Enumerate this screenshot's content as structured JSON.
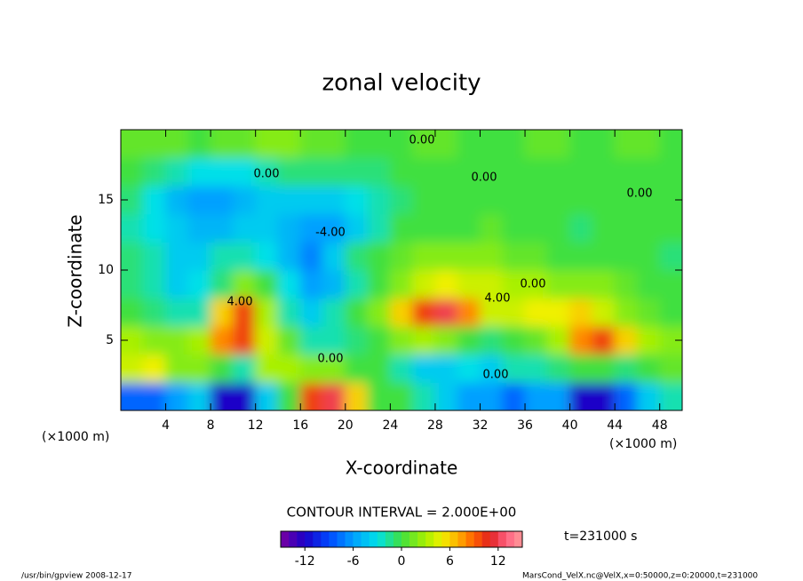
{
  "chart_data": {
    "type": "contour",
    "title": "zonal velocity",
    "x_label": "X-coordinate",
    "y_label": "Z-coordinate",
    "axis_unit": "(×1000 m)",
    "xlim": [
      0,
      50
    ],
    "ylim": [
      0,
      20
    ],
    "xticks": [
      4,
      8,
      12,
      16,
      20,
      24,
      28,
      32,
      36,
      40,
      44,
      48
    ],
    "yticks": [
      5,
      10,
      15
    ],
    "x": [
      1,
      3,
      5,
      7,
      9,
      11,
      13,
      15,
      17,
      19,
      21,
      23,
      25,
      27,
      29,
      31,
      33,
      35,
      37,
      39,
      41,
      43,
      45,
      47,
      49
    ],
    "y": [
      1,
      3,
      5,
      7,
      9,
      11,
      13,
      15,
      17,
      19
    ],
    "z": [
      [
        -8,
        -8,
        -6,
        -4,
        -12,
        -12,
        -4,
        0,
        10,
        12,
        6,
        0,
        0,
        -2,
        -4,
        -6,
        -6,
        -8,
        -6,
        -6,
        -12,
        -12,
        -8,
        -4,
        -2
      ],
      [
        4,
        5,
        2,
        2,
        0,
        -2,
        3,
        3,
        2,
        2,
        0,
        0,
        -2,
        -4,
        -4,
        -3,
        -4,
        -2,
        -2,
        -1,
        0,
        0,
        -1,
        0,
        1
      ],
      [
        3,
        2,
        2,
        3,
        8,
        10,
        4,
        1,
        -2,
        -2,
        -1,
        0,
        2,
        3,
        2,
        0,
        -1,
        0,
        1,
        3,
        8,
        10,
        6,
        3,
        2
      ],
      [
        0,
        -1,
        -2,
        -2,
        6,
        10,
        3,
        -2,
        -4,
        -2,
        0,
        2,
        6,
        10,
        12,
        8,
        4,
        4,
        5,
        5,
        6,
        4,
        2,
        1,
        0
      ],
      [
        -1,
        -2,
        -4,
        -3,
        -1,
        2,
        0,
        -3,
        -6,
        -5,
        -2,
        0,
        2,
        4,
        5,
        4,
        4,
        3,
        3,
        2,
        2,
        2,
        1,
        0,
        0
      ],
      [
        -1,
        -2,
        -4,
        -4,
        -2,
        -2,
        -3,
        -5,
        -7,
        -4,
        -1,
        0,
        1,
        2,
        2,
        2,
        2,
        1,
        1,
        0,
        0,
        0,
        0,
        0,
        -1
      ],
      [
        -2,
        -3,
        -4,
        -5,
        -5,
        -4,
        -4,
        -5,
        -6,
        -6,
        -4,
        -2,
        0,
        0,
        0,
        0,
        1,
        0,
        0,
        0,
        -1,
        0,
        0,
        0,
        0
      ],
      [
        -1,
        -3,
        -5,
        -6,
        -6,
        -5,
        -4,
        -4,
        -4,
        -4,
        -3,
        -2,
        -1,
        0,
        0,
        0,
        0,
        0,
        0,
        0,
        0,
        0,
        0,
        0,
        0
      ],
      [
        0,
        -1,
        -2,
        -3,
        -3,
        -3,
        -2,
        -1,
        -1,
        -1,
        -1,
        -1,
        0,
        0,
        0,
        0,
        0,
        0,
        0,
        0,
        0,
        0,
        0,
        0,
        0
      ],
      [
        1,
        1,
        1,
        0,
        1,
        1,
        2,
        2,
        1,
        1,
        0,
        0,
        0,
        1,
        1,
        0,
        0,
        0,
        1,
        1,
        0,
        0,
        1,
        1,
        0
      ]
    ],
    "contour_labels": [
      {
        "value": 0,
        "label": "0.00"
      },
      {
        "value": 0,
        "label": "0.00"
      },
      {
        "value": 0,
        "label": "0.00"
      },
      {
        "value": 0,
        "label": "0.00"
      },
      {
        "value": -4,
        "label": "-4.00"
      },
      {
        "value": 4,
        "label": "4.00"
      },
      {
        "value": 4,
        "label": "4.00"
      },
      {
        "value": 0,
        "label": "0.00"
      },
      {
        "value": 0,
        "label": "0.00"
      },
      {
        "value": 0,
        "label": "0.00"
      }
    ],
    "clim": [
      -15,
      15
    ],
    "colorbar_ticks": [
      -12,
      -6,
      0,
      6,
      12
    ],
    "colormap": [
      [
        -15,
        "#7a00a0"
      ],
      [
        -12,
        "#1a00c8"
      ],
      [
        -9,
        "#0048ff"
      ],
      [
        -6,
        "#00a0ff"
      ],
      [
        -3,
        "#00e0e8"
      ],
      [
        0,
        "#40e040"
      ],
      [
        3,
        "#a8f000"
      ],
      [
        5,
        "#f0f000"
      ],
      [
        7,
        "#ffb000"
      ],
      [
        9,
        "#ff6000"
      ],
      [
        11,
        "#e02020"
      ],
      [
        13,
        "#ff6080"
      ],
      [
        15,
        "#ff9a9a"
      ]
    ],
    "contour_interval": "CONTOUR INTERVAL = 2.000E+00",
    "time": "t=231000 s",
    "footer_left": "/usr/bin/gpview   2008-12-17",
    "footer_right": "MarsCond_VelX.nc@VelX,x=0:50000,z=0:20000,t=231000"
  }
}
